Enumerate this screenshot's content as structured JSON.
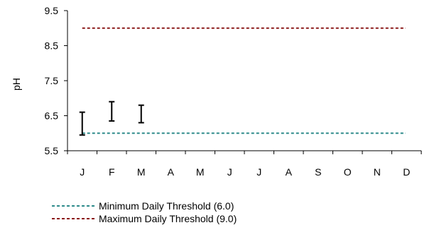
{
  "chart_data": {
    "type": "line",
    "ylabel": "pH",
    "ylim": [
      5.5,
      9.5
    ],
    "yticks": [
      5.5,
      6.5,
      7.5,
      8.5,
      9.5
    ],
    "categories": [
      "J",
      "F",
      "M",
      "A",
      "M",
      "J",
      "J",
      "A",
      "S",
      "O",
      "N",
      "D"
    ],
    "range_series": [
      {
        "category_index": 0,
        "low": 5.95,
        "high": 6.6
      },
      {
        "category_index": 1,
        "low": 6.35,
        "high": 6.9
      },
      {
        "category_index": 2,
        "low": 6.3,
        "high": 6.8
      }
    ],
    "thresholds": [
      {
        "name": "Minimum Daily Threshold (6.0)",
        "value": 6.0,
        "color": "#2E8B8B"
      },
      {
        "name": "Maximum Daily Threshold (9.0)",
        "value": 9.0,
        "color": "#8B1A1A"
      }
    ],
    "legend_position": "bottom"
  }
}
